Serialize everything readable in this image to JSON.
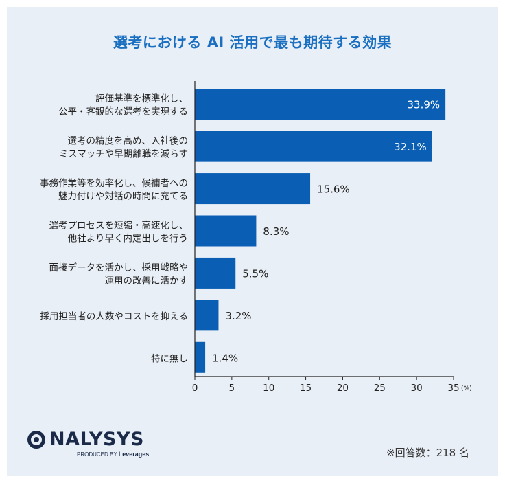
{
  "chart_data": {
    "type": "bar",
    "orientation": "horizontal",
    "title": "選考における AI 活用で最も期待する効果",
    "categories": [
      [
        "評価基準を標準化し、",
        "公平・客観的な選考を実現する"
      ],
      [
        "選考の精度を高め、入社後の",
        "ミスマッチや早期離職を減らす"
      ],
      [
        "事務作業等を効率化し、候補者への",
        "魅力付けや対話の時間に充てる"
      ],
      [
        "選考プロセスを短縮・高速化し、",
        "他社より早く内定出しを行う"
      ],
      [
        "面接データを活かし、採用戦略や",
        "運用の改善に活かす"
      ],
      [
        "採用担当者の人数やコストを抑える"
      ],
      [
        "特に無し"
      ]
    ],
    "values": [
      33.9,
      32.1,
      15.6,
      8.3,
      5.5,
      3.2,
      1.4
    ],
    "value_labels": [
      "33.9%",
      "32.1%",
      "15.6%",
      "8.3%",
      "5.5%",
      "3.2%",
      "1.4%"
    ],
    "xlim": [
      0,
      35
    ],
    "xticks": [
      "0",
      "5",
      "10",
      "15",
      "20",
      "25",
      "30",
      "35"
    ],
    "x_unit": "(%)",
    "bar_color": "#0a5fb4",
    "grid": false
  },
  "footer": {
    "brand": "NALYSYS",
    "produced_by": "PRODUCED BY",
    "company": "Leverages",
    "respondents": "※回答数：218 名"
  }
}
